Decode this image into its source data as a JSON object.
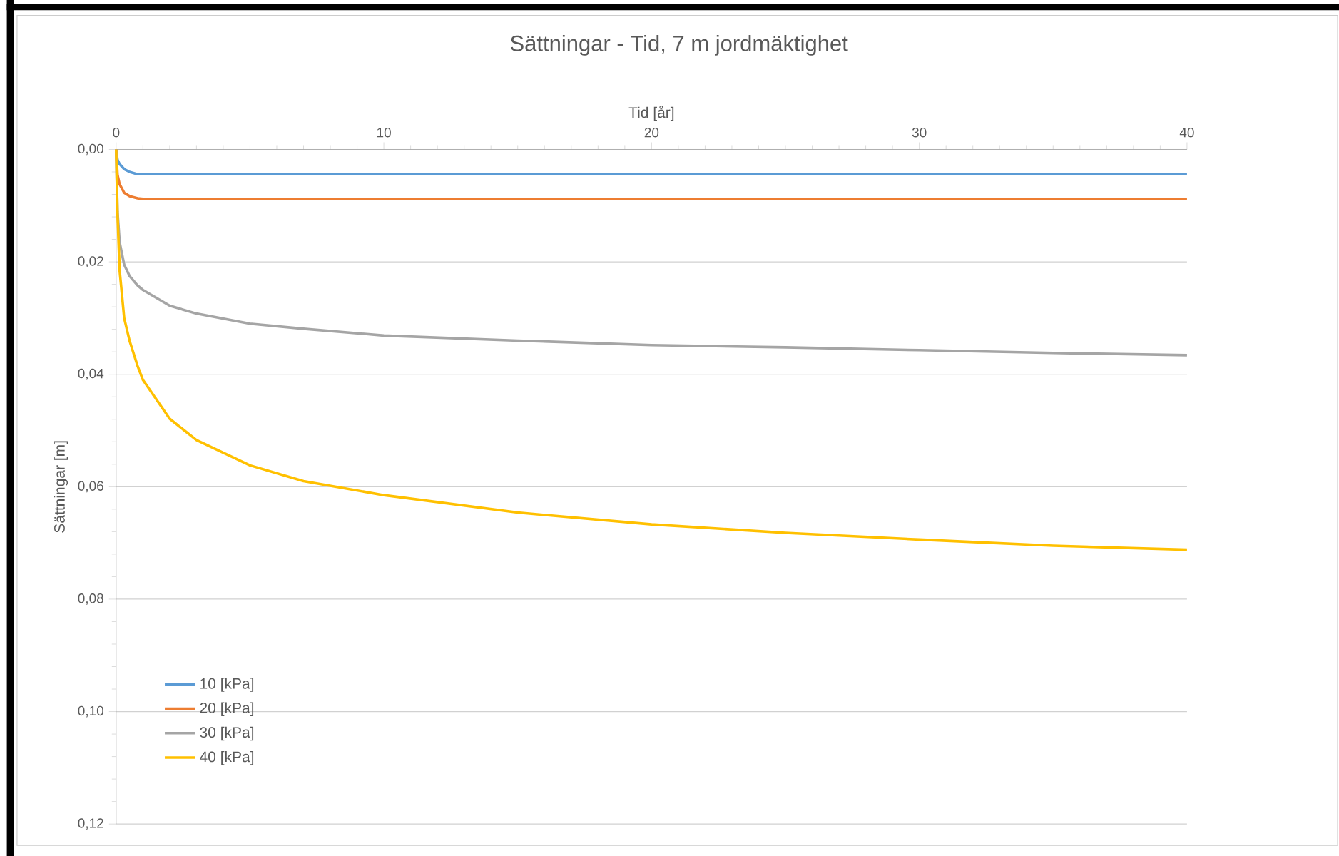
{
  "chart_data": {
    "type": "line",
    "title": "Sättningar - Tid, 7 m jordmäktighet",
    "xlabel": "Tid [år]",
    "ylabel": "Sättningar [m]",
    "xlim": [
      0,
      40
    ],
    "xticks": [
      0,
      10,
      20,
      30,
      40
    ],
    "ylim": [
      0.12,
      0
    ],
    "yticks": [
      {
        "value": 0,
        "label": "0,00"
      },
      {
        "value": 0.02,
        "label": "0,02"
      },
      {
        "value": 0.04,
        "label": "0,04"
      },
      {
        "value": 0.06,
        "label": "0,06"
      },
      {
        "value": 0.08,
        "label": "0,08"
      },
      {
        "value": 0.1,
        "label": "0,10"
      },
      {
        "value": 0.12,
        "label": "0,12"
      }
    ],
    "grid": "y",
    "legend": "bottom left",
    "marker": "none",
    "line_style": "solid",
    "x": [
      0,
      0.05,
      0.13,
      0.3,
      0.5,
      0.8,
      1,
      2,
      3,
      5,
      7,
      10,
      15,
      20,
      25,
      30,
      35,
      40
    ],
    "series": [
      {
        "name": "10 [kPa]",
        "color": "#5b9bd5",
        "values": [
          0,
          0.0018,
          0.0026,
          0.0035,
          0.004,
          0.0044,
          0.0044,
          0.0044,
          0.0044,
          0.0044,
          0.0044,
          0.0044,
          0.0044,
          0.0044,
          0.0044,
          0.0044,
          0.0044,
          0.0044
        ]
      },
      {
        "name": "20 [kPa]",
        "color": "#ed7d31",
        "values": [
          0,
          0.0045,
          0.0062,
          0.0077,
          0.0083,
          0.0087,
          0.0088,
          0.0088,
          0.0088,
          0.0088,
          0.0088,
          0.0088,
          0.0088,
          0.0088,
          0.0088,
          0.0088,
          0.0088,
          0.0088
        ]
      },
      {
        "name": "30 [kPa]",
        "color": "#a5a5a5",
        "values": [
          0,
          0.011,
          0.0165,
          0.0205,
          0.0225,
          0.0242,
          0.025,
          0.0278,
          0.0292,
          0.031,
          0.0319,
          0.0331,
          0.034,
          0.0348,
          0.0352,
          0.0357,
          0.0362,
          0.0366
        ]
      },
      {
        "name": "40 [kPa]",
        "color": "#ffc000",
        "values": [
          0,
          0.0114,
          0.0215,
          0.03,
          0.034,
          0.0385,
          0.041,
          0.0479,
          0.0517,
          0.0562,
          0.059,
          0.0615,
          0.0646,
          0.0667,
          0.0682,
          0.0694,
          0.0705,
          0.0712
        ]
      }
    ]
  }
}
